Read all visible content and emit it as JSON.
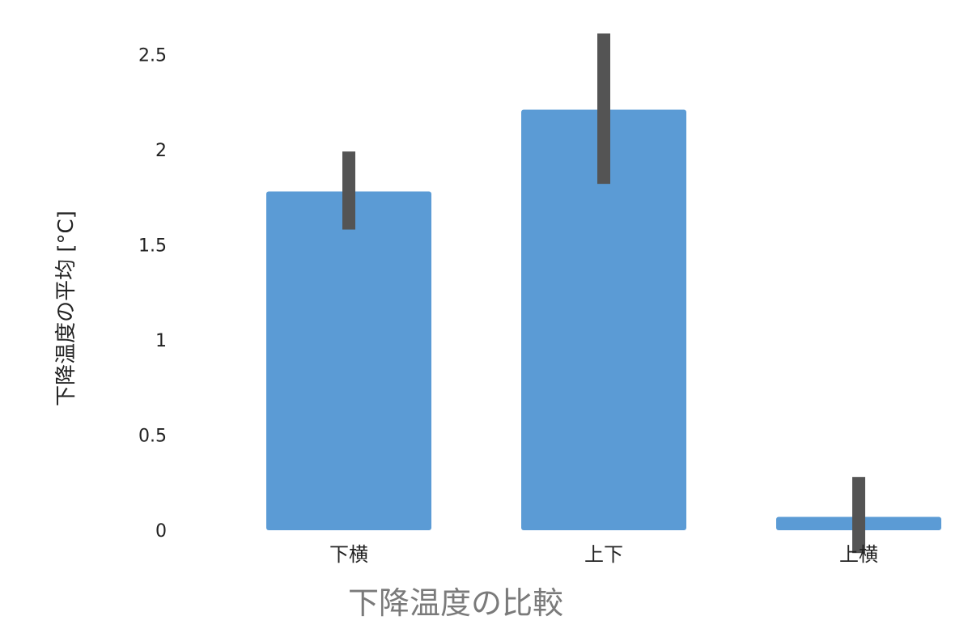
{
  "chart_data": {
    "type": "bar",
    "title": "",
    "xlabel": "下降温度の比較",
    "ylabel": "下降温度の平均 [°C]",
    "categories": [
      "下横",
      "上下",
      "上横"
    ],
    "values": [
      1.78,
      2.21,
      0.07
    ],
    "error_bars": [
      {
        "low": 1.58,
        "high": 1.99
      },
      {
        "low": 1.82,
        "high": 2.61
      },
      {
        "low": -0.12,
        "high": 0.28
      }
    ],
    "yticks": [
      0,
      0.5,
      1,
      1.5,
      2,
      2.5
    ],
    "ytick_labels": [
      "0",
      "0.5",
      "1",
      "1.5",
      "2",
      "2.5"
    ],
    "ylim": [
      0,
      2.65
    ],
    "grid": false,
    "legend": "none",
    "colors": {
      "bar": "#5b9bd5",
      "error_bar": "#545454",
      "tick_text": "#222222",
      "ylabel_text": "#222222",
      "xlabel_text": "#7a7a7a"
    }
  }
}
